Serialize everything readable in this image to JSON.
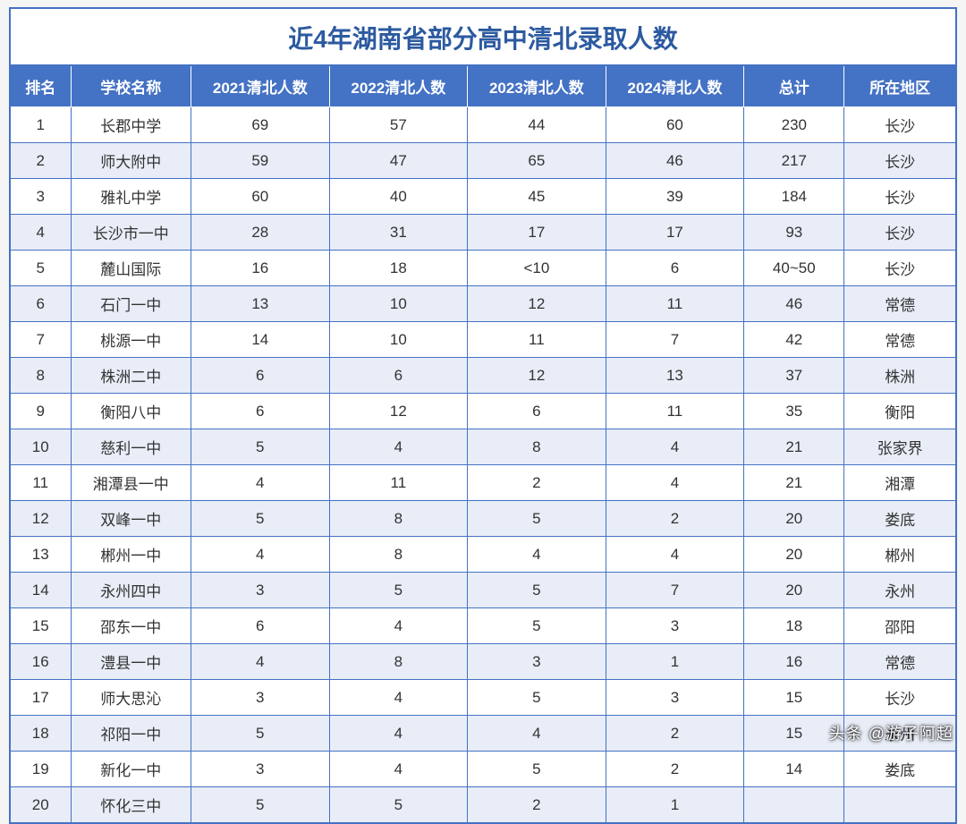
{
  "title": "近4年湖南省部分高中清北录取人数",
  "watermark": "头条 @游子阿超",
  "table": {
    "type": "table",
    "header_bg": "#4472c4",
    "header_fg": "#ffffff",
    "row_alt_bg": "#e8edf7",
    "row_bg": "#ffffff",
    "border_color": "#4472c4",
    "title_color": "#2c5aa0",
    "title_fontsize": 28,
    "cell_fontsize": 17,
    "columns": [
      "排名",
      "学校名称",
      "2021清北人数",
      "2022清北人数",
      "2023清北人数",
      "2024清北人数",
      "总计",
      "所在地区"
    ],
    "rows": [
      [
        "1",
        "长郡中学",
        "69",
        "57",
        "44",
        "60",
        "230",
        "长沙"
      ],
      [
        "2",
        "师大附中",
        "59",
        "47",
        "65",
        "46",
        "217",
        "长沙"
      ],
      [
        "3",
        "雅礼中学",
        "60",
        "40",
        "45",
        "39",
        "184",
        "长沙"
      ],
      [
        "4",
        "长沙市一中",
        "28",
        "31",
        "17",
        "17",
        "93",
        "长沙"
      ],
      [
        "5",
        "麓山国际",
        "16",
        "18",
        "<10",
        "6",
        "40~50",
        "长沙"
      ],
      [
        "6",
        "石门一中",
        "13",
        "10",
        "12",
        "11",
        "46",
        "常德"
      ],
      [
        "7",
        "桃源一中",
        "14",
        "10",
        "11",
        "7",
        "42",
        "常德"
      ],
      [
        "8",
        "株洲二中",
        "6",
        "6",
        "12",
        "13",
        "37",
        "株洲"
      ],
      [
        "9",
        "衡阳八中",
        "6",
        "12",
        "6",
        "11",
        "35",
        "衡阳"
      ],
      [
        "10",
        "慈利一中",
        "5",
        "4",
        "8",
        "4",
        "21",
        "张家界"
      ],
      [
        "11",
        "湘潭县一中",
        "4",
        "11",
        "2",
        "4",
        "21",
        "湘潭"
      ],
      [
        "12",
        "双峰一中",
        "5",
        "8",
        "5",
        "2",
        "20",
        "娄底"
      ],
      [
        "13",
        "郴州一中",
        "4",
        "8",
        "4",
        "4",
        "20",
        "郴州"
      ],
      [
        "14",
        "永州四中",
        "3",
        "5",
        "5",
        "7",
        "20",
        "永州"
      ],
      [
        "15",
        "邵东一中",
        "6",
        "4",
        "5",
        "3",
        "18",
        "邵阳"
      ],
      [
        "16",
        "澧县一中",
        "4",
        "8",
        "3",
        "1",
        "16",
        "常德"
      ],
      [
        "17",
        "师大思沁",
        "3",
        "4",
        "5",
        "3",
        "15",
        "长沙"
      ],
      [
        "18",
        "祁阳一中",
        "5",
        "4",
        "4",
        "2",
        "15",
        "永州"
      ],
      [
        "19",
        "新化一中",
        "3",
        "4",
        "5",
        "2",
        "14",
        "娄底"
      ],
      [
        "20",
        "怀化三中",
        "5",
        "5",
        "2",
        "1",
        "",
        ""
      ]
    ]
  }
}
